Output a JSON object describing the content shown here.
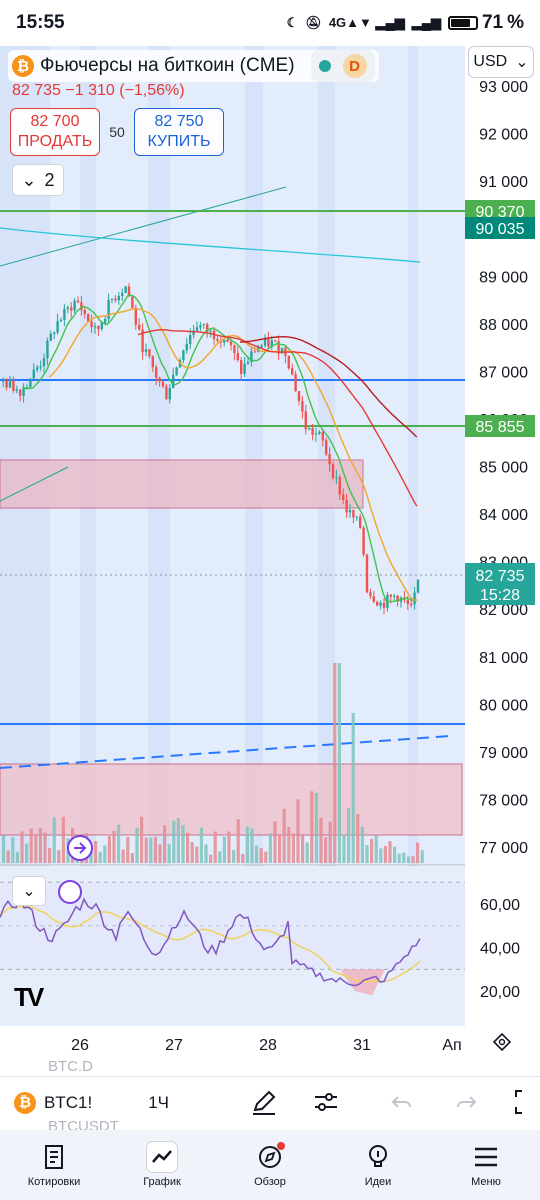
{
  "status": {
    "time": "15:55",
    "battery": "71"
  },
  "symbol": {
    "title": "Фьючерсы на биткоин (CME)",
    "currency": "USD",
    "letter": "D",
    "logo_glyph": "₿"
  },
  "price": {
    "last": "82 735",
    "change": "−1 310",
    "change_pct": "(−1,56%)"
  },
  "trade": {
    "sell_price": "82 700",
    "sell_label": "ПРОДАТЬ",
    "spread": "50",
    "buy_price": "82 750",
    "buy_label": "КУПИТЬ"
  },
  "indicators_count": "2",
  "price_axis": [
    "93 000",
    "92 000",
    "91 000",
    "90 000",
    "89 000",
    "88 000",
    "87 000",
    "86 000",
    "85 000",
    "84 000",
    "83 000",
    "82 000",
    "81 000",
    "80 000",
    "79 000",
    "78 000",
    "77 000"
  ],
  "price_labels": [
    {
      "text": "90 370",
      "color": "#4caf50"
    },
    {
      "text": "90 035",
      "color": "#00897b"
    },
    {
      "text": "85 855",
      "color": "#4caf50"
    },
    {
      "text": "82 735",
      "color": "#26a69a"
    }
  ],
  "countdown": "15:28",
  "rsi_axis": [
    "60,00",
    "40,00",
    "20,00"
  ],
  "time_axis": [
    "26",
    "27",
    "28",
    "31",
    "Ап"
  ],
  "bottom": {
    "symbol": "BTC1!",
    "timeframe": "1Ч",
    "ghost_top": "BTC.D",
    "ghost_bottom": "BTCUSDT"
  },
  "nav": [
    {
      "label": "Котировки",
      "icon": "watchlist-icon"
    },
    {
      "label": "График",
      "icon": "chart-icon",
      "active": true
    },
    {
      "label": "Обзор",
      "icon": "compass-icon",
      "badge": true
    },
    {
      "label": "Идеи",
      "icon": "ideas-icon"
    },
    {
      "label": "Меню",
      "icon": "menu-icon"
    }
  ],
  "colors": {
    "up": "#26a69a",
    "down": "#ef5350",
    "accent": "#2962ff",
    "green_line": "#4caf50",
    "blue_line": "#2979ff"
  }
}
